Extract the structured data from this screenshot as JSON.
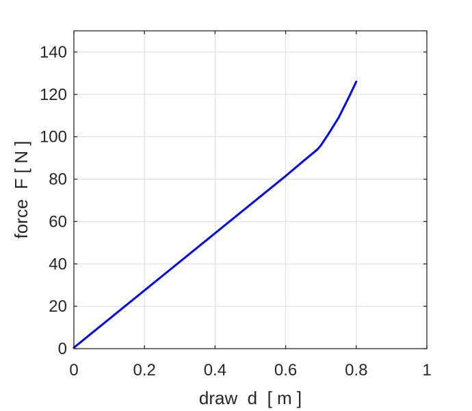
{
  "chart_data": {
    "type": "line",
    "title": "",
    "xlabel": "draw  d  [ m ]",
    "ylabel": "force  F [ N ]",
    "xlim": [
      0,
      1
    ],
    "ylim": [
      0,
      150
    ],
    "xticks": [
      0,
      0.2,
      0.4,
      0.6,
      0.8,
      1
    ],
    "xtick_labels": [
      "0",
      "0.2",
      "0.4",
      "0.6",
      "0.8",
      "1"
    ],
    "yticks": [
      0,
      20,
      40,
      60,
      80,
      100,
      120,
      140
    ],
    "ytick_labels": [
      "0",
      "20",
      "40",
      "60",
      "80",
      "100",
      "120",
      "140"
    ],
    "grid": true,
    "legend": "none",
    "series": [
      {
        "color": "#0000ff",
        "x": [
          0,
          0.1,
          0.2,
          0.3,
          0.4,
          0.5,
          0.6,
          0.65,
          0.69,
          0.7,
          0.72,
          0.75,
          0.78,
          0.8
        ],
        "y": [
          0.5,
          14,
          27.5,
          41,
          54.5,
          68,
          81.5,
          88.5,
          94,
          96,
          101,
          109,
          119,
          126
        ]
      }
    ],
    "axis_color": "#262626",
    "grid_color": "#dcdcdc"
  }
}
